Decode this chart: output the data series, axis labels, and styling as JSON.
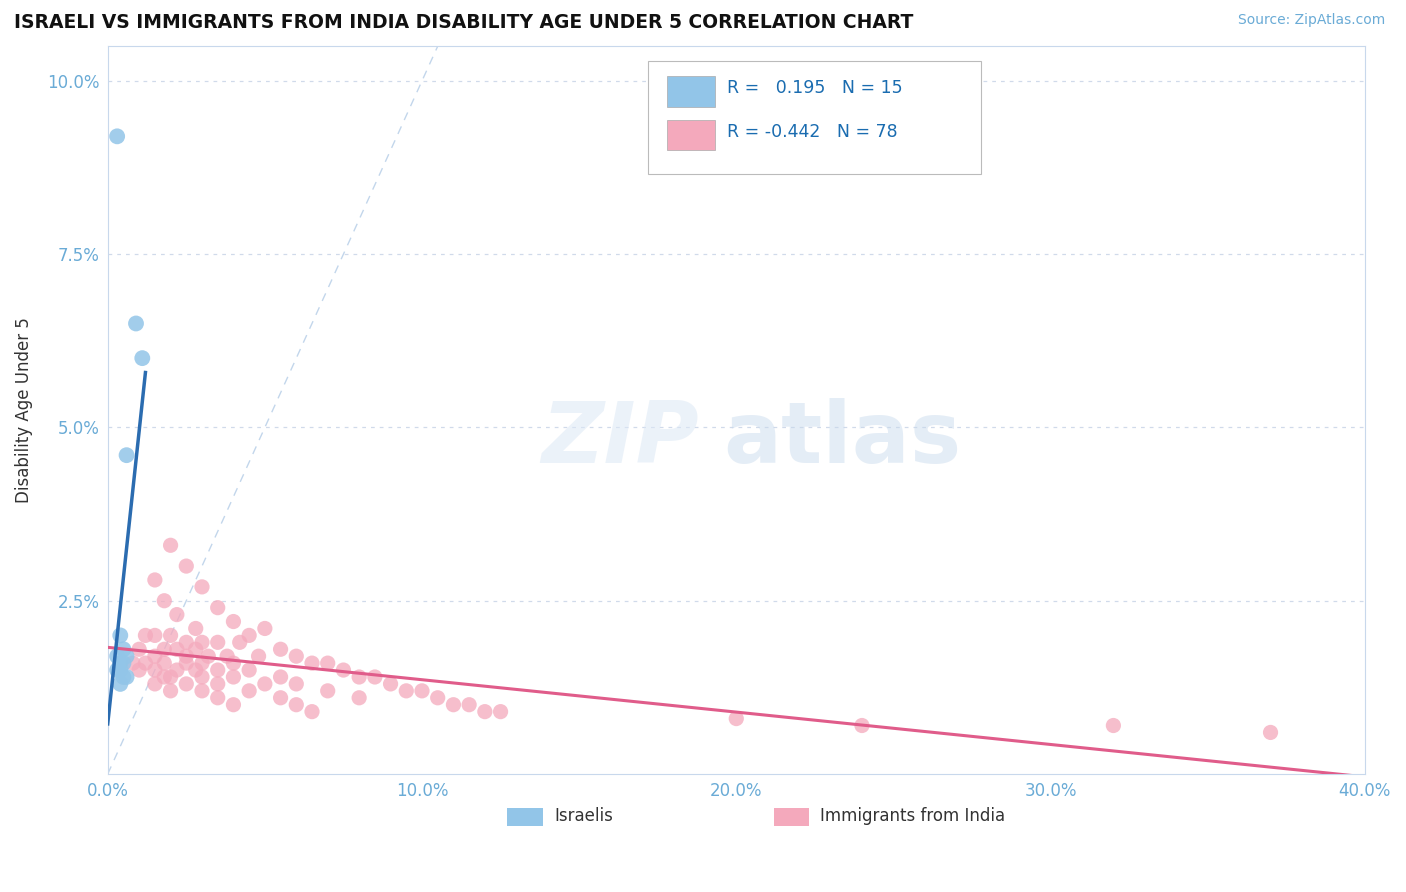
{
  "title": "ISRAELI VS IMMIGRANTS FROM INDIA DISABILITY AGE UNDER 5 CORRELATION CHART",
  "source": "Source: ZipAtlas.com",
  "ylabel": "Disability Age Under 5",
  "xlim": [
    0.0,
    0.4
  ],
  "ylim": [
    0.0,
    0.105
  ],
  "xticks": [
    0.0,
    0.1,
    0.2,
    0.3,
    0.4
  ],
  "xticklabels": [
    "0.0%",
    "10.0%",
    "20.0%",
    "30.0%",
    "40.0%"
  ],
  "yticks": [
    0.0,
    0.025,
    0.05,
    0.075,
    0.1
  ],
  "yticklabels": [
    "",
    "2.5%",
    "5.0%",
    "7.5%",
    "10.0%"
  ],
  "watermark_zip": "ZIP",
  "watermark_atlas": "atlas",
  "legend_R_israeli": "0.195",
  "legend_N_israeli": "15",
  "legend_R_india": "-0.442",
  "legend_N_india": "78",
  "israeli_color": "#92c5e8",
  "india_color": "#f4a9bc",
  "israeli_line_color": "#2b6cb0",
  "india_line_color": "#e05c8a",
  "diagonal_color": "#b8cfe8",
  "grid_color": "#d0daea",
  "tick_color": "#6aabd6",
  "legend_text_color": "#1a6cb0",
  "label_color": "#333333",
  "israeli_points": [
    [
      0.003,
      0.092
    ],
    [
      0.009,
      0.065
    ],
    [
      0.011,
      0.06
    ],
    [
      0.006,
      0.046
    ],
    [
      0.004,
      0.02
    ],
    [
      0.005,
      0.018
    ],
    [
      0.003,
      0.017
    ],
    [
      0.006,
      0.017
    ],
    [
      0.004,
      0.016
    ],
    [
      0.005,
      0.016
    ],
    [
      0.003,
      0.015
    ],
    [
      0.004,
      0.015
    ],
    [
      0.005,
      0.014
    ],
    [
      0.006,
      0.014
    ],
    [
      0.004,
      0.013
    ]
  ],
  "india_points": [
    [
      0.02,
      0.033
    ],
    [
      0.025,
      0.03
    ],
    [
      0.015,
      0.028
    ],
    [
      0.03,
      0.027
    ],
    [
      0.018,
      0.025
    ],
    [
      0.035,
      0.024
    ],
    [
      0.022,
      0.023
    ],
    [
      0.04,
      0.022
    ],
    [
      0.028,
      0.021
    ],
    [
      0.05,
      0.021
    ],
    [
      0.015,
      0.02
    ],
    [
      0.012,
      0.02
    ],
    [
      0.02,
      0.02
    ],
    [
      0.045,
      0.02
    ],
    [
      0.025,
      0.019
    ],
    [
      0.03,
      0.019
    ],
    [
      0.035,
      0.019
    ],
    [
      0.042,
      0.019
    ],
    [
      0.018,
      0.018
    ],
    [
      0.022,
      0.018
    ],
    [
      0.028,
      0.018
    ],
    [
      0.055,
      0.018
    ],
    [
      0.01,
      0.018
    ],
    [
      0.015,
      0.017
    ],
    [
      0.025,
      0.017
    ],
    [
      0.032,
      0.017
    ],
    [
      0.038,
      0.017
    ],
    [
      0.048,
      0.017
    ],
    [
      0.06,
      0.017
    ],
    [
      0.012,
      0.016
    ],
    [
      0.018,
      0.016
    ],
    [
      0.025,
      0.016
    ],
    [
      0.03,
      0.016
    ],
    [
      0.04,
      0.016
    ],
    [
      0.065,
      0.016
    ],
    [
      0.008,
      0.016
    ],
    [
      0.07,
      0.016
    ],
    [
      0.015,
      0.015
    ],
    [
      0.022,
      0.015
    ],
    [
      0.028,
      0.015
    ],
    [
      0.035,
      0.015
    ],
    [
      0.045,
      0.015
    ],
    [
      0.075,
      0.015
    ],
    [
      0.01,
      0.015
    ],
    [
      0.08,
      0.014
    ],
    [
      0.02,
      0.014
    ],
    [
      0.03,
      0.014
    ],
    [
      0.04,
      0.014
    ],
    [
      0.085,
      0.014
    ],
    [
      0.018,
      0.014
    ],
    [
      0.055,
      0.014
    ],
    [
      0.025,
      0.013
    ],
    [
      0.035,
      0.013
    ],
    [
      0.05,
      0.013
    ],
    [
      0.09,
      0.013
    ],
    [
      0.06,
      0.013
    ],
    [
      0.015,
      0.013
    ],
    [
      0.095,
      0.012
    ],
    [
      0.03,
      0.012
    ],
    [
      0.045,
      0.012
    ],
    [
      0.07,
      0.012
    ],
    [
      0.1,
      0.012
    ],
    [
      0.02,
      0.012
    ],
    [
      0.08,
      0.011
    ],
    [
      0.105,
      0.011
    ],
    [
      0.035,
      0.011
    ],
    [
      0.055,
      0.011
    ],
    [
      0.11,
      0.01
    ],
    [
      0.115,
      0.01
    ],
    [
      0.04,
      0.01
    ],
    [
      0.06,
      0.01
    ],
    [
      0.12,
      0.009
    ],
    [
      0.125,
      0.009
    ],
    [
      0.065,
      0.009
    ],
    [
      0.2,
      0.008
    ],
    [
      0.24,
      0.007
    ],
    [
      0.32,
      0.007
    ],
    [
      0.37,
      0.006
    ]
  ],
  "background_color": "#ffffff"
}
